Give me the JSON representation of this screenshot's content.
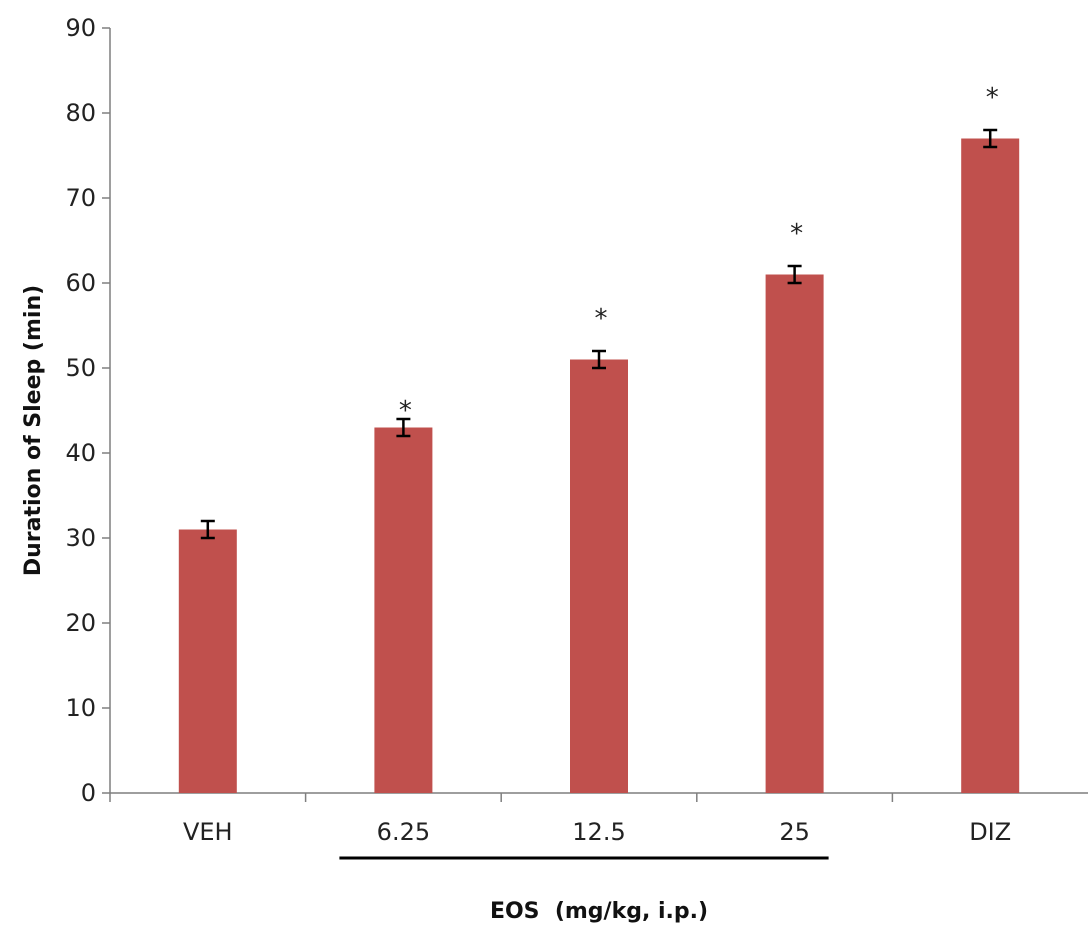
{
  "chart_data": {
    "type": "bar",
    "categories": [
      "VEH",
      "6.25",
      "12.5",
      "25",
      "DIZ"
    ],
    "values": [
      31,
      43,
      51,
      61,
      77
    ],
    "errors": [
      1,
      1,
      1,
      1,
      1
    ],
    "significance": [
      "",
      "*",
      "*",
      "*",
      "*"
    ],
    "xlabel": "EOS  (mg/kg, i.p.)",
    "ylabel": "Duration of Sleep (min)",
    "ylim": [
      0,
      90
    ],
    "yticks": [
      0,
      10,
      20,
      30,
      40,
      50,
      60,
      70,
      80,
      90
    ],
    "grid": false,
    "bar_color": "#c0504d",
    "group_underline": [
      "6.25",
      "25"
    ]
  }
}
